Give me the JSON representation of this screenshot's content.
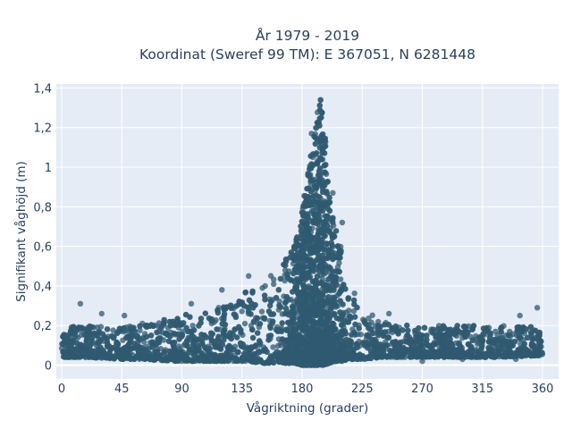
{
  "chart_data": {
    "type": "scatter",
    "title_line1": "År 1979 - 2019",
    "title_line2": "Koordinat (Sweref 99 TM): E 367051, N 6281448",
    "xlabel": "Vågriktning (grader)",
    "ylabel": "Signifikant våghöjd (m)",
    "xlim": [
      -4,
      372
    ],
    "ylim": [
      -0.07,
      1.42
    ],
    "xticks": [
      0,
      45,
      90,
      135,
      180,
      225,
      270,
      315,
      360
    ],
    "xtick_labels": [
      "0",
      "45",
      "90",
      "135",
      "180",
      "225",
      "270",
      "315",
      "360"
    ],
    "yticks": [
      0,
      0.2,
      0.4,
      0.6,
      0.8,
      1.0,
      1.2,
      1.4
    ],
    "ytick_labels": [
      "0",
      "0,2",
      "0,4",
      "0,6",
      "0,8",
      "1",
      "1,2",
      "1,4"
    ],
    "grid": true,
    "marker_color": "#2f5a70",
    "plot_background": "#e5ecf6",
    "envelope": {
      "x": [
        0,
        20,
        45,
        60,
        90,
        110,
        135,
        150,
        165,
        175,
        180,
        185,
        190,
        193,
        197,
        200,
        205,
        210,
        215,
        225,
        240,
        270,
        300,
        330,
        360
      ],
      "upper": [
        0.19,
        0.2,
        0.19,
        0.21,
        0.25,
        0.28,
        0.36,
        0.42,
        0.5,
        0.62,
        0.8,
        1.0,
        1.2,
        1.38,
        1.2,
        0.9,
        0.7,
        0.58,
        0.42,
        0.3,
        0.22,
        0.2,
        0.2,
        0.2,
        0.19
      ],
      "lower": [
        0.04,
        0.04,
        0.03,
        0.03,
        0.02,
        0.02,
        0.02,
        0.01,
        0.01,
        0.01,
        0.0,
        0.0,
        0.0,
        0.0,
        0.0,
        0.01,
        0.02,
        0.02,
        0.03,
        0.03,
        0.04,
        0.04,
        0.04,
        0.04,
        0.05
      ]
    },
    "outliers": [
      {
        "x": 14,
        "y": 0.31
      },
      {
        "x": 30,
        "y": 0.26
      },
      {
        "x": 47,
        "y": 0.25
      },
      {
        "x": 97,
        "y": 0.31
      },
      {
        "x": 120,
        "y": 0.38
      },
      {
        "x": 140,
        "y": 0.45
      },
      {
        "x": 245,
        "y": 0.26
      },
      {
        "x": 270,
        "y": 0.02
      },
      {
        "x": 343,
        "y": 0.25
      },
      {
        "x": 356,
        "y": 0.29
      },
      {
        "x": 340,
        "y": 0.03
      },
      {
        "x": 300,
        "y": 0.03
      },
      {
        "x": 210,
        "y": 0.72
      },
      {
        "x": 203,
        "y": 0.87
      },
      {
        "x": 187,
        "y": 1.17
      },
      {
        "x": 188,
        "y": 1.05
      }
    ]
  }
}
